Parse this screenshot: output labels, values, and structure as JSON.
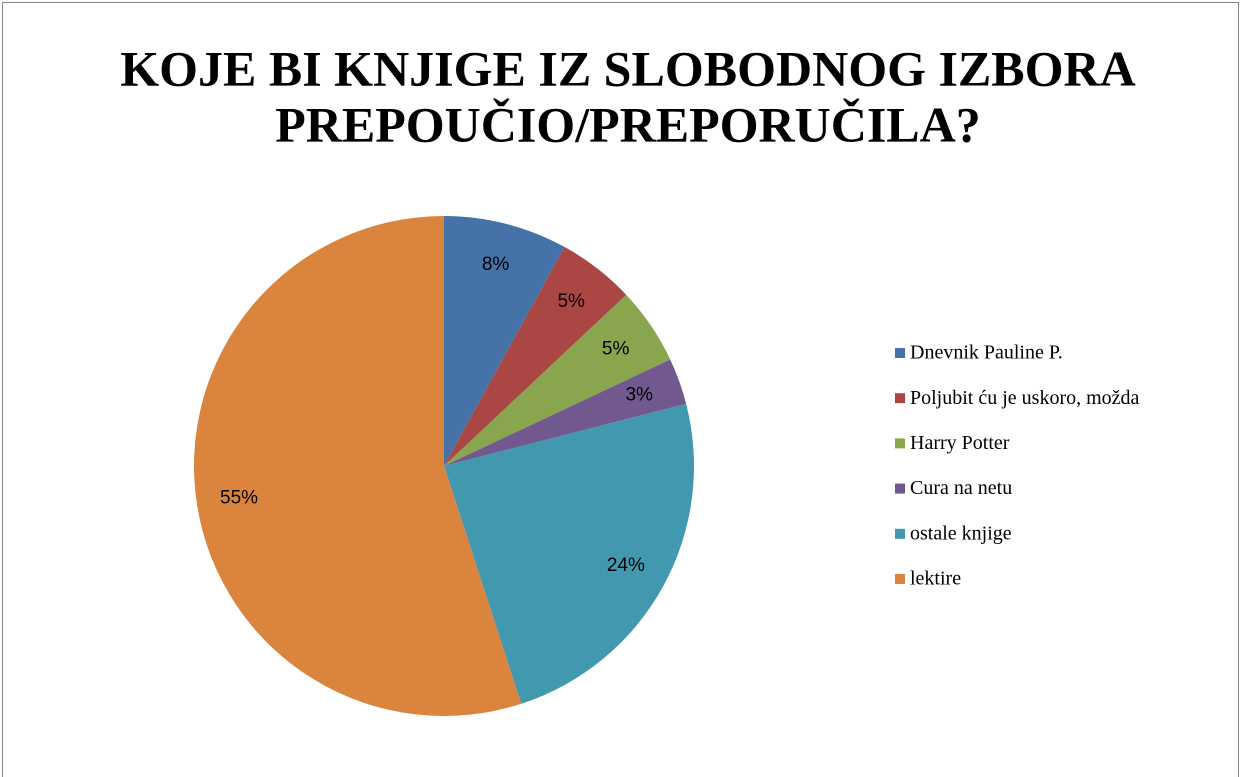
{
  "chart_data": {
    "type": "pie",
    "title": [
      "KOJE BI KNJIGE IZ SLOBODNOG IZBORA",
      "PREPOUČIO/PREPORUČILA?"
    ],
    "categories": [
      "Dnevnik Pauline P.",
      "Poljubit ću je uskoro, možda",
      "Harry Potter",
      "Cura na netu",
      "ostale knjige",
      "lektire"
    ],
    "values": [
      8,
      5,
      5,
      3,
      24,
      55
    ],
    "value_labels": [
      "8%",
      "5%",
      "5%",
      "3%",
      "24%",
      "55%"
    ],
    "colors": [
      "#4572a7",
      "#aa4643",
      "#89a54e",
      "#71588f",
      "#4198af",
      "#db843d"
    ],
    "legend": "right"
  }
}
